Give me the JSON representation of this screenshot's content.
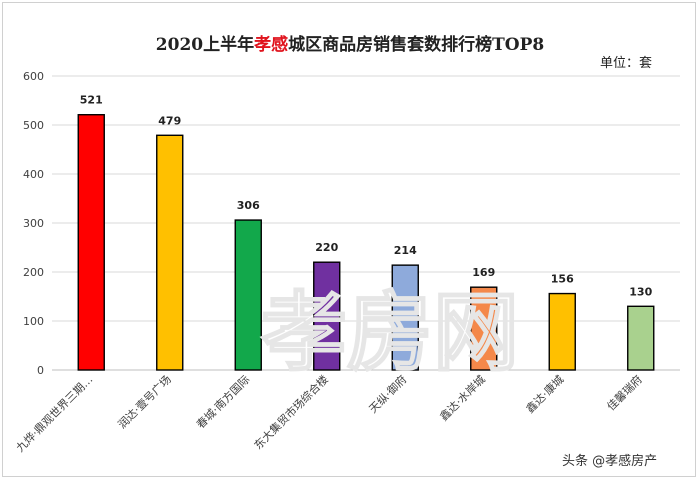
{
  "chart_data": {
    "type": "bar",
    "title_prefix": "2020上半年",
    "title_highlight": "孝感",
    "title_suffix": "城区商品房销售套数排行榜TOP8",
    "unit_label": "单位：套",
    "categories": [
      "九烨·鼎观世界三期…",
      "润达·壹号广场",
      "春城·南方国际",
      "东大集贸市场综合楼",
      "天纵·御府",
      "鑫达·水岸城",
      "鑫达·康城",
      "佳馨瑞府"
    ],
    "values": [
      521,
      479,
      306,
      220,
      214,
      169,
      156,
      130
    ],
    "colors": [
      "#ff0000",
      "#ffc000",
      "#12a84b",
      "#7030a0",
      "#8eaadb",
      "#f4884a",
      "#ffc000",
      "#a9d18e"
    ],
    "ylim": [
      0,
      600
    ],
    "yticks": [
      0,
      100,
      200,
      300,
      400,
      500,
      600
    ],
    "grid": true,
    "xlabel": "",
    "ylabel": ""
  },
  "watermark_text": "孝房网",
  "credit": "头条 @孝感房产"
}
